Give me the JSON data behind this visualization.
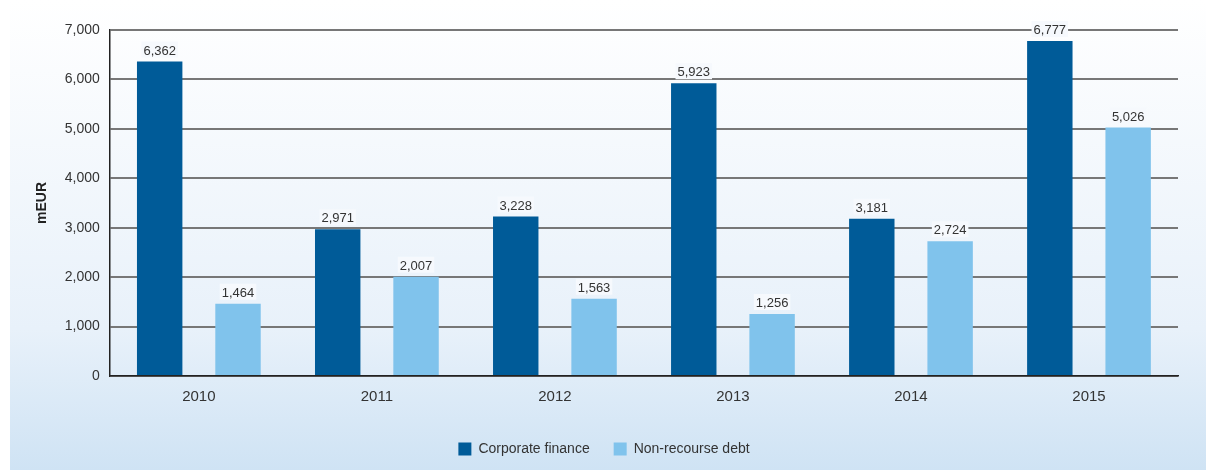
{
  "chart_data": {
    "type": "bar",
    "ylabel": "mEUR",
    "categories": [
      "2010",
      "2011",
      "2012",
      "2013",
      "2014",
      "2015"
    ],
    "series": [
      {
        "name": "Corporate finance",
        "color": "#005b98",
        "values": [
          6362,
          2971,
          3228,
          5923,
          3181,
          6777
        ],
        "value_labels": [
          "6,362",
          "2,971",
          "3,228",
          "5,923",
          "3,181",
          "6,777"
        ]
      },
      {
        "name": "Non-recourse debt",
        "color": "#80c3ec",
        "values": [
          1464,
          2007,
          1563,
          1256,
          2724,
          5026
        ],
        "value_labels": [
          "1,464",
          "2,007",
          "1,563",
          "1,256",
          "2,724",
          "5,026"
        ]
      }
    ],
    "ylim": [
      0,
      7000
    ],
    "yticks": [
      {
        "value": 0,
        "label": "0"
      },
      {
        "value": 1000,
        "label": "1,000"
      },
      {
        "value": 2000,
        "label": "2,000"
      },
      {
        "value": 3000,
        "label": "3,000"
      },
      {
        "value": 4000,
        "label": "4,000"
      },
      {
        "value": 5000,
        "label": "5,000"
      },
      {
        "value": 6000,
        "label": "6,000"
      },
      {
        "value": 7000,
        "label": "7,000"
      }
    ],
    "grid": "y",
    "legend": "bottom"
  }
}
